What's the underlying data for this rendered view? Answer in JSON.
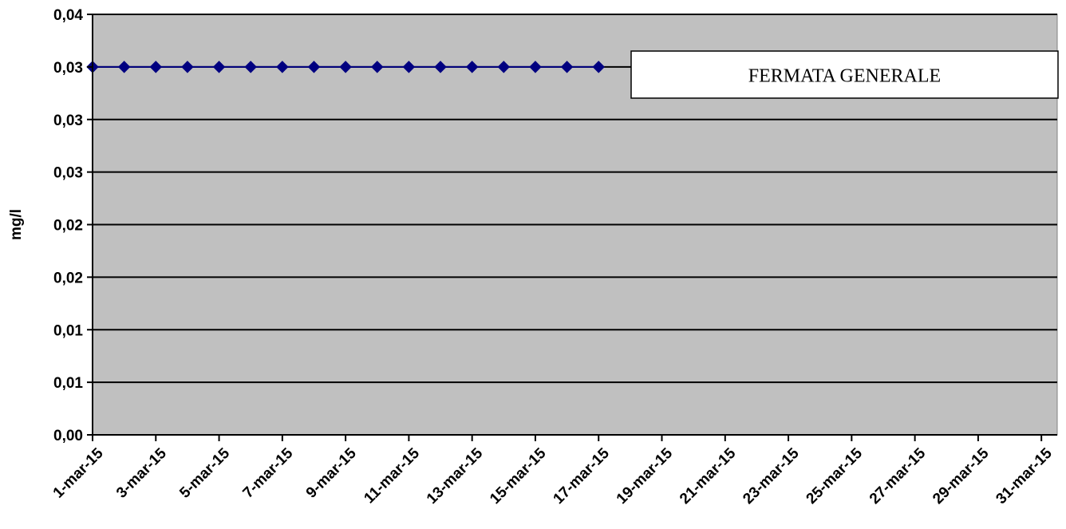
{
  "chart_data": {
    "type": "line",
    "title": "",
    "xlabel": "",
    "ylabel": "mg/l",
    "ylim": [
      0,
      0.04
    ],
    "y_ticks": [
      0.0,
      0.005,
      0.01,
      0.015,
      0.02,
      0.025,
      0.03,
      0.035,
      0.04
    ],
    "y_tick_labels": [
      "0,00",
      "0,01",
      "0,01",
      "0,02",
      "0,02",
      "0,03",
      "0,03",
      "0,03",
      "0,04"
    ],
    "x_range": [
      "2015-03-01",
      "2015-03-31"
    ],
    "x_tick_labels": [
      "1-mar-15",
      "3-mar-15",
      "5-mar-15",
      "7-mar-15",
      "9-mar-15",
      "11-mar-15",
      "13-mar-15",
      "15-mar-15",
      "17-mar-15",
      "19-mar-15",
      "21-mar-15",
      "23-mar-15",
      "25-mar-15",
      "27-mar-15",
      "29-mar-15",
      "31-mar-15"
    ],
    "grid": true,
    "plot_background": "#C0C0C0",
    "series": [
      {
        "color": "#000080",
        "marker": "diamond",
        "x": [
          "2015-03-01",
          "2015-03-02",
          "2015-03-03",
          "2015-03-04",
          "2015-03-05",
          "2015-03-06",
          "2015-03-07",
          "2015-03-08",
          "2015-03-09",
          "2015-03-10",
          "2015-03-11",
          "2015-03-12",
          "2015-03-13",
          "2015-03-14",
          "2015-03-15",
          "2015-03-16",
          "2015-03-17"
        ],
        "values": [
          0.035,
          0.035,
          0.035,
          0.035,
          0.035,
          0.035,
          0.035,
          0.035,
          0.035,
          0.035,
          0.035,
          0.035,
          0.035,
          0.035,
          0.035,
          0.035,
          0.035
        ]
      }
    ],
    "annotations": [
      {
        "text": "FERMATA GENERALE",
        "position": "top-right"
      }
    ]
  }
}
